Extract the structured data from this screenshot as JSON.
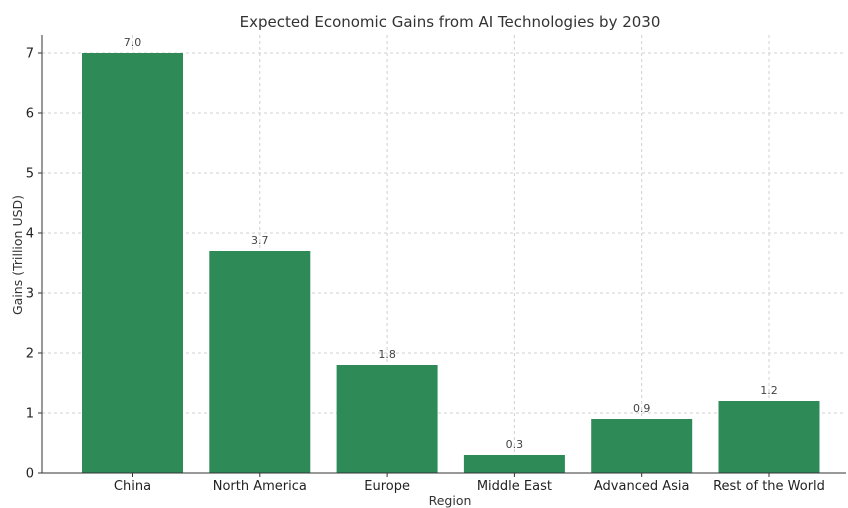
{
  "chart_data": {
    "type": "bar",
    "title": "Expected Economic Gains from AI Technologies by 2030",
    "xlabel": "Region",
    "ylabel": "Gains (Trillion USD)",
    "categories": [
      "China",
      "North America",
      "Europe",
      "Middle East",
      "Advanced Asia",
      "Rest of the World"
    ],
    "values": [
      7.0,
      3.7,
      1.8,
      0.3,
      0.9,
      1.2
    ],
    "data_labels": [
      "7.0",
      "3.7",
      "1.8",
      "0.3",
      "0.9",
      "1.2"
    ],
    "yticks": [
      "0",
      "1",
      "2",
      "3",
      "4",
      "5",
      "6",
      "7"
    ],
    "ylim": [
      0,
      7.3
    ],
    "grid": true,
    "bar_color": "#2e8b57"
  }
}
